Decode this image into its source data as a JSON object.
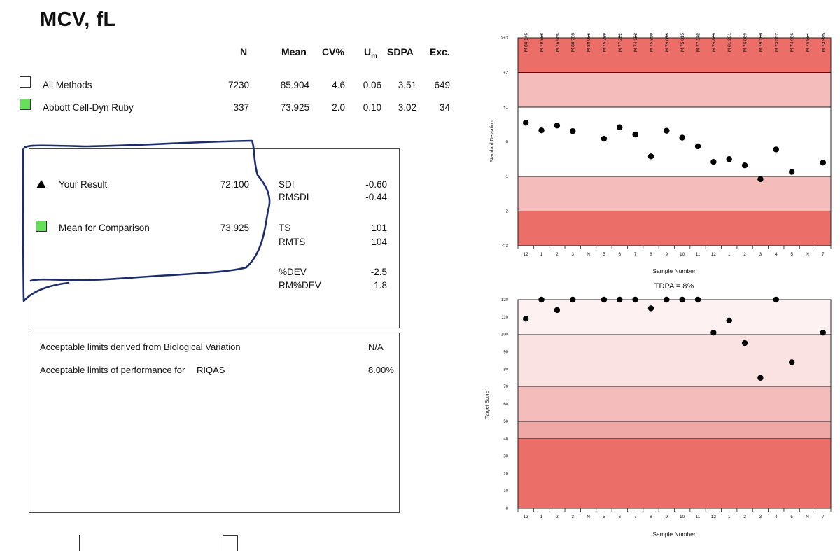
{
  "title": "MCV, fL",
  "stats_header": {
    "n": "N",
    "mean": "Mean",
    "cv": "CV%",
    "um": "U",
    "um_sub": "m",
    "sdpa": "SDPA",
    "exc": "Exc."
  },
  "stats_rows": [
    {
      "label": "All Methods",
      "n": "7230",
      "mean": "85.904",
      "cv": "4.6",
      "um": "0.06",
      "sdpa": "3.51",
      "exc": "649"
    },
    {
      "label": "Abbott Cell-Dyn Ruby",
      "n": "337",
      "mean": "73.925",
      "cv": "2.0",
      "um": "0.10",
      "sdpa": "3.02",
      "exc": "34"
    }
  ],
  "result": {
    "your_result_label": "Your Result",
    "your_result_value": "72.100",
    "mean_label": "Mean for Comparison",
    "mean_value": "73.925",
    "sdi_label": "SDI",
    "sdi_value": "-0.60",
    "rmsdi_label": "RMSDI",
    "rmsdi_value": "-0.44",
    "ts_label": "TS",
    "ts_value": "101",
    "rmts_label": "RMTS",
    "rmts_value": "104",
    "dev_label": "%DEV",
    "dev_value": "-2.5",
    "rmdev_label": "RM%DEV",
    "rmdev_value": "-1.8"
  },
  "limits": {
    "bio_label": "Acceptable limits derived from Biological Variation",
    "bio_value": "N/A",
    "perf_label": "Acceptable limits of performance for",
    "perf_scheme": "RIQAS",
    "perf_value": "8.00%"
  },
  "colors": {
    "dark_band": "#ec6e68",
    "mid_band": "#f4bcbb",
    "light_band": "#f9e2e1",
    "lightest_band": "#fdf2f1",
    "green": "#66e05a",
    "annotation": "#1d2d6b"
  },
  "chart_data": [
    {
      "type": "scatter",
      "title": "",
      "xlabel": "Sample Number",
      "ylabel": "Standard Deviation",
      "top_labels": [
        "M 80.146",
        "M 79.638",
        "M 76.604",
        "M 80.798",
        "M 80.036",
        "M 75.299",
        "M 77.282",
        "M 74.153",
        "M 75.850",
        "M 79.078",
        "M 75.015",
        "M 77.172",
        "M 79.869",
        "M 81.201",
        "M 76.869",
        "M 79.180",
        "M 73.557",
        "M 74.906",
        "M 76.534",
        "M 73.925"
      ],
      "categories": [
        "12",
        "1",
        "2",
        "3",
        "N",
        "5",
        "6",
        "7",
        "8",
        "9",
        "10",
        "11",
        "12",
        "1",
        "2",
        "3",
        "4",
        "5",
        "N",
        "7"
      ],
      "ytick_labels": [
        ">+3",
        "+2",
        "+1",
        "0",
        "-1",
        "-2",
        "<-3"
      ],
      "ylim": [
        -3,
        3
      ],
      "values": [
        0.55,
        0.33,
        0.47,
        0.31,
        null,
        0.09,
        0.42,
        0.21,
        -0.42,
        0.32,
        0.12,
        -0.13,
        -0.58,
        -0.5,
        -0.68,
        -1.08,
        -0.22,
        -0.87,
        null,
        -0.6
      ]
    },
    {
      "type": "scatter",
      "title": "TDPA = 8%",
      "xlabel": "Sample Number",
      "ylabel": "Target Score",
      "categories": [
        "12",
        "1",
        "2",
        "3",
        "N",
        "5",
        "6",
        "7",
        "8",
        "9",
        "10",
        "11",
        "12",
        "1",
        "2",
        "3",
        "4",
        "5",
        "N",
        "7"
      ],
      "ytick_labels": [
        "120",
        "110",
        "100",
        "90",
        "80",
        "70",
        "60",
        "50",
        "40",
        "30",
        "20",
        "10",
        "0"
      ],
      "ylim": [
        0,
        120
      ],
      "values": [
        109,
        120,
        114,
        120,
        null,
        120,
        120,
        120,
        115,
        120,
        120,
        120,
        101,
        108,
        95,
        75,
        120,
        84,
        null,
        101
      ]
    }
  ]
}
